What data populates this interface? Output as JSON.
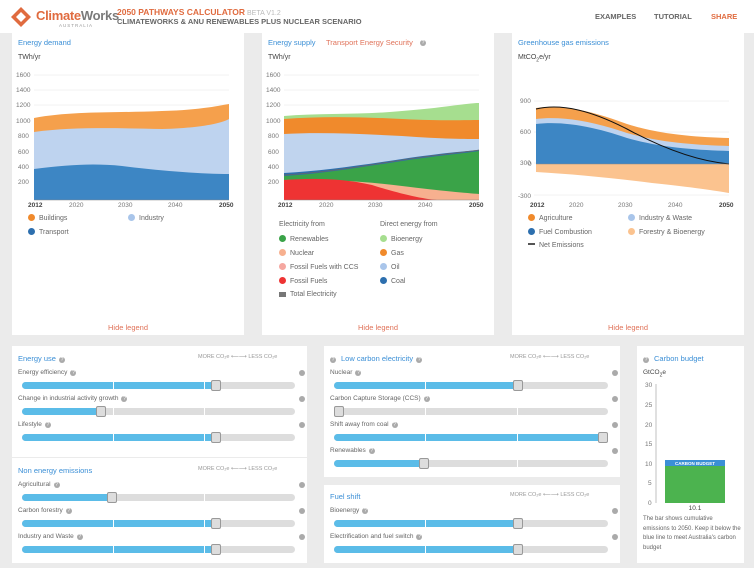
{
  "header": {
    "brand_a": "Climate",
    "brand_b": "Works",
    "brand_sub": "AUSTRALIA",
    "title": "2050 PATHWAYS CALCULATOR",
    "badge": "BETA V1.2",
    "subtitle": "CLIMATEWORKS & ANU RENEWABLES PLUS NUCLEAR SCENARIO",
    "nav": [
      "EXAMPLES",
      "TUTORIAL",
      "SHARE"
    ]
  },
  "demand": {
    "title": "Energy demand",
    "unit": "TWh/yr",
    "yticks": [
      "1600",
      "1400",
      "1200",
      "1000",
      "800",
      "600",
      "400",
      "200"
    ],
    "xticks": [
      "2012",
      "2020",
      "2030",
      "2040",
      "2050"
    ],
    "legend": [
      "Buildings",
      "Industry",
      "Transport"
    ],
    "hide": "Hide legend"
  },
  "supply": {
    "tab1": "Energy supply",
    "tab2": "Transport Energy Security",
    "unit": "TWh/yr",
    "yticks": [
      "1600",
      "1400",
      "1200",
      "1000",
      "800",
      "600",
      "400",
      "200"
    ],
    "xticks": [
      "2012",
      "2020",
      "2030",
      "2040",
      "2050"
    ],
    "h1": "Electricity from",
    "h2": "Direct energy from",
    "legend1": [
      "Renewables",
      "Nuclear",
      "Fossil Fuels with CCS",
      "Fossil Fuels",
      "Total Electricity"
    ],
    "legend2": [
      "Bioenergy",
      "Gas",
      "Oil",
      "Coal"
    ],
    "hide": "Hide legend"
  },
  "ghg": {
    "title": "Greenhouse gas emissions",
    "unit": "MtCO",
    "unit_sub": "2",
    "unit_suf": "e/yr",
    "yticks": [
      "900",
      "600",
      "300",
      "0",
      "-300"
    ],
    "xticks": [
      "2012",
      "2020",
      "2030",
      "2040",
      "2050"
    ],
    "legend": [
      "Agriculture",
      "Industry & Waste",
      "Fuel Combustion",
      "Forestry & Bioenergy",
      "Net Emissions"
    ],
    "hide": "Hide legend"
  },
  "colors": {
    "buildings": "#f5a04c",
    "industry": "#bed3ef",
    "transport": "#3d86c4",
    "renewables": "#3aa348",
    "nuclear": "#f7b08f",
    "ccs": "#f5a7a0",
    "fossil": "#ee3333",
    "bio": "#a6de8f",
    "gas": "#f08a2c",
    "oil": "#c0d4ee",
    "coal": "#2d6fae",
    "agri": "#f08a2c",
    "indwaste": "#bed3ef",
    "fuelcomb": "#3d86c4",
    "forestry": "#fbc38f"
  },
  "more": "MORE CO₂e",
  "less": "LESS CO₂e",
  "energy_use": {
    "title": "Energy use",
    "sliders": [
      {
        "label": "Energy efficiency",
        "value": 0.71
      },
      {
        "label": "Change in industrial activity growth",
        "value": 0.29
      },
      {
        "label": "Lifestyle",
        "value": 0.71
      }
    ]
  },
  "non_energy": {
    "title": "Non energy emissions",
    "sliders": [
      {
        "label": "Agricultural",
        "value": 0.33
      },
      {
        "label": "Carbon forestry",
        "value": 0.71
      },
      {
        "label": "Industry and Waste",
        "value": 0.71
      }
    ]
  },
  "low_carbon": {
    "title": "Low carbon electricity",
    "sliders": [
      {
        "label": "Nuclear",
        "value": 0.67
      },
      {
        "label": "Carbon Capture Storage (CCS)",
        "value": 0.0
      },
      {
        "label": "Shift away from coal",
        "value": 1.0
      },
      {
        "label": "Renewables",
        "value": 0.33
      }
    ]
  },
  "fuel_shift": {
    "title": "Fuel shift",
    "sliders": [
      {
        "label": "Bioenergy",
        "value": 0.67
      },
      {
        "label": "Electrification and fuel switch",
        "value": 0.67
      }
    ]
  },
  "budget": {
    "title": "Carbon budget",
    "unit": "GtCO",
    "unit_sub": "2",
    "unit_suf": "e",
    "yticks": [
      "30",
      "25",
      "20",
      "15",
      "10",
      "5",
      "0"
    ],
    "line_label": "CARBON BUDGET",
    "value": "10.1",
    "note": "The bar shows cumulative emissions to 2050. Keep it below the blue line to meet Australia's carbon budget"
  }
}
